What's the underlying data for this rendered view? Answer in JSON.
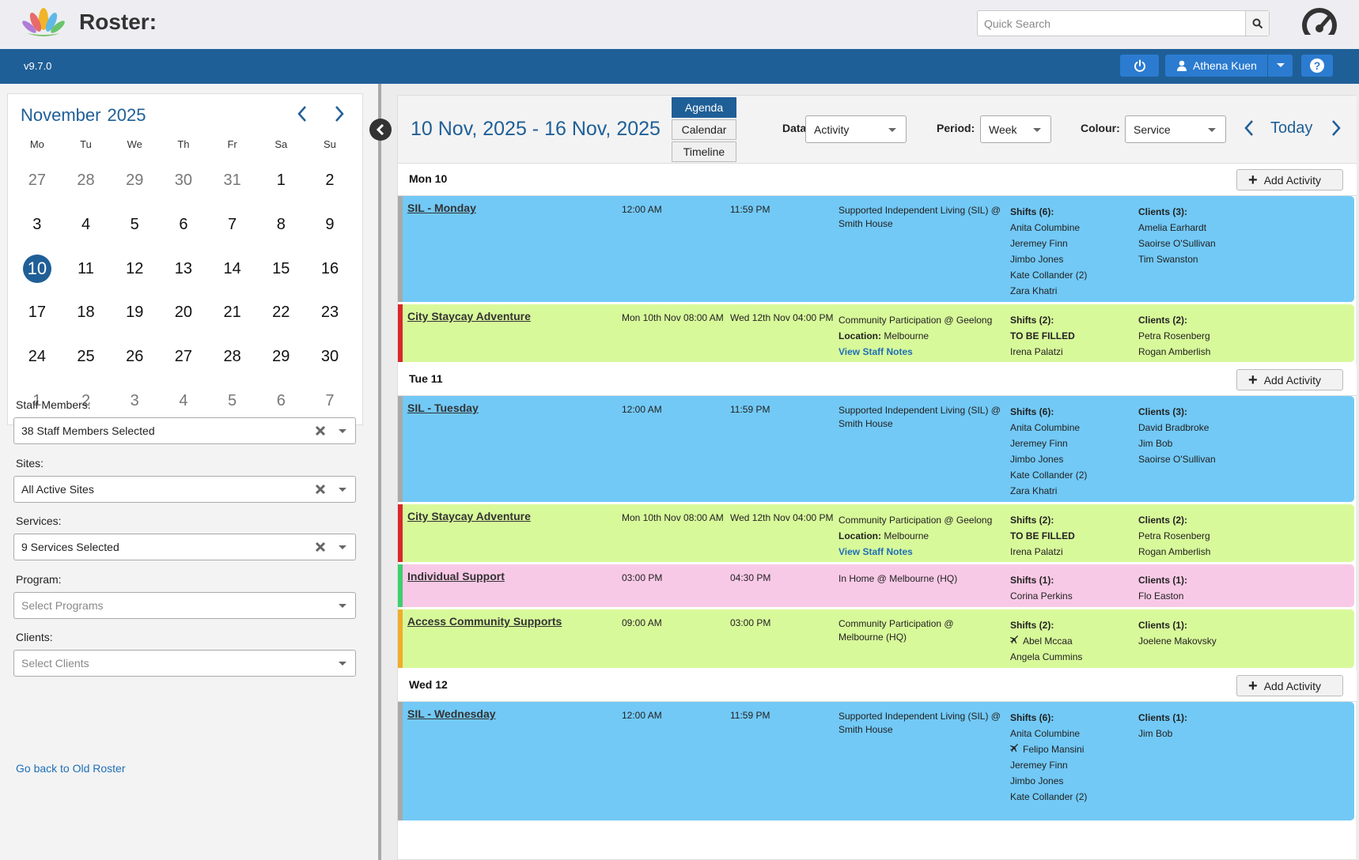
{
  "header": {
    "app_title": "Roster:",
    "search_placeholder": "Quick Search",
    "version": "v9.7.0",
    "user_name": "Athena Kuen"
  },
  "calendar": {
    "month": "November",
    "year": "2025",
    "dow": [
      "Mo",
      "Tu",
      "We",
      "Th",
      "Fr",
      "Sa",
      "Su"
    ],
    "days": [
      {
        "d": "27",
        "o": true
      },
      {
        "d": "28",
        "o": true
      },
      {
        "d": "29",
        "o": true
      },
      {
        "d": "30",
        "o": true
      },
      {
        "d": "31",
        "o": true
      },
      {
        "d": "1"
      },
      {
        "d": "2"
      },
      {
        "d": "3"
      },
      {
        "d": "4"
      },
      {
        "d": "5"
      },
      {
        "d": "6"
      },
      {
        "d": "7"
      },
      {
        "d": "8"
      },
      {
        "d": "9"
      },
      {
        "d": "10",
        "t": true
      },
      {
        "d": "11"
      },
      {
        "d": "12"
      },
      {
        "d": "13"
      },
      {
        "d": "14"
      },
      {
        "d": "15"
      },
      {
        "d": "16"
      },
      {
        "d": "17"
      },
      {
        "d": "18"
      },
      {
        "d": "19"
      },
      {
        "d": "20"
      },
      {
        "d": "21"
      },
      {
        "d": "22"
      },
      {
        "d": "23"
      },
      {
        "d": "24"
      },
      {
        "d": "25"
      },
      {
        "d": "26"
      },
      {
        "d": "27"
      },
      {
        "d": "28"
      },
      {
        "d": "29"
      },
      {
        "d": "30"
      },
      {
        "d": "1",
        "o": true
      },
      {
        "d": "2",
        "o": true
      },
      {
        "d": "3",
        "o": true
      },
      {
        "d": "4",
        "o": true
      },
      {
        "d": "5",
        "o": true
      },
      {
        "d": "6",
        "o": true
      },
      {
        "d": "7",
        "o": true
      }
    ]
  },
  "filters": {
    "staff_label": "Staff Members:",
    "staff_value": "38 Staff Members Selected",
    "sites_label": "Sites:",
    "sites_value": "All Active Sites",
    "services_label": "Services:",
    "services_value": "9 Services Selected",
    "program_label": "Program:",
    "program_placeholder": "Select Programs",
    "clients_label": "Clients:",
    "clients_placeholder": "Select Clients",
    "old_roster_link": "Go back to Old Roster"
  },
  "toolbar": {
    "range_title": "10 Nov, 2025 - 16 Nov, 2025",
    "views": [
      "Agenda",
      "Calendar",
      "Timeline"
    ],
    "data_label": "Data:",
    "data_value": "Activity",
    "period_label": "Period:",
    "period_value": "Week",
    "colour_label": "Colour:",
    "colour_value": "Service",
    "today_label": "Today",
    "add_activity_label": "Add Activity"
  },
  "colors": {
    "blue": "#72c9f6",
    "green": "#d8f99a",
    "pink": "#f8c9e6",
    "border_grey": "#a9a9a9",
    "border_red": "#d9262c",
    "border_green": "#3dcf6e",
    "border_orange": "#efad2c"
  },
  "agenda": [
    {
      "day": "Mon 10",
      "activities": [
        {
          "name": "SIL - Monday",
          "start": "12:00 AM",
          "end": "11:59 PM",
          "desc": "Supported Independent Living (SIL) @ Smith House",
          "location": "",
          "notes": "",
          "shifts_hd": "Shifts (6):",
          "shifts": [
            "Anita Columbine",
            "Jeremey Finn",
            "Jimbo Jones",
            "Kate Collander (2)",
            "Zara Khatri"
          ],
          "shift_icon": [],
          "clients_hd": "Clients (3):",
          "clients": [
            "Amelia Earhardt",
            "Saoirse O'Sullivan",
            "Tim Swanston"
          ],
          "bg": "#72c9f6",
          "border": "#a9a9a9",
          "h": 134
        },
        {
          "name": "City Staycay Adventure",
          "start": "Mon 10th Nov 08:00 AM",
          "end": "Wed 12th Nov 04:00 PM",
          "desc": "Community Participation @ Geelong",
          "location_label": "Location:",
          "location": "Melbourne",
          "notes": "View Staff Notes",
          "shifts_hd": "Shifts (2):",
          "shifts": [
            "TO BE FILLED",
            "Irena Palatzi"
          ],
          "shift_icon": [],
          "clients_hd": "Clients (2):",
          "clients": [
            "Petra Rosenberg",
            "Rogan Amberlish"
          ],
          "bg": "#d8f99a",
          "border": "#d9262c",
          "h": 73
        }
      ]
    },
    {
      "day": "Tue 11",
      "activities": [
        {
          "name": "SIL - Tuesday",
          "start": "12:00 AM",
          "end": "11:59 PM",
          "desc": "Supported Independent Living (SIL) @ Smith House",
          "location": "",
          "notes": "",
          "shifts_hd": "Shifts (6):",
          "shifts": [
            "Anita Columbine",
            "Jeremey Finn",
            "Jimbo Jones",
            "Kate Collander (2)",
            "Zara Khatri"
          ],
          "shift_icon": [],
          "clients_hd": "Clients (3):",
          "clients": [
            "David Bradbroke",
            "Jim Bob",
            "Saoirse O'Sullivan"
          ],
          "bg": "#72c9f6",
          "border": "#a9a9a9",
          "h": 134
        },
        {
          "name": "City Staycay Adventure",
          "start": "Mon 10th Nov 08:00 AM",
          "end": "Wed 12th Nov 04:00 PM",
          "desc": "Community Participation @ Geelong",
          "location_label": "Location:",
          "location": "Melbourne",
          "notes": "View Staff Notes",
          "shifts_hd": "Shifts (2):",
          "shifts": [
            "TO BE FILLED",
            "Irena Palatzi"
          ],
          "shift_icon": [],
          "clients_hd": "Clients (2):",
          "clients": [
            "Petra Rosenberg",
            "Rogan Amberlish"
          ],
          "bg": "#d8f99a",
          "border": "#d9262c",
          "h": 73
        },
        {
          "name": "Individual Support",
          "start": "03:00 PM",
          "end": "04:30 PM",
          "desc": "In Home @ Melbourne (HQ)",
          "location": "",
          "notes": "",
          "shifts_hd": "Shifts (1):",
          "shifts": [
            "Corina Perkins"
          ],
          "shift_icon": [],
          "clients_hd": "Clients (1):",
          "clients": [
            "Flo Easton"
          ],
          "bg": "#f8c9e6",
          "border": "#3dcf6e",
          "h": 54
        },
        {
          "name": "Access Community Supports",
          "start": "09:00 AM",
          "end": "03:00 PM",
          "desc": "Community Participation @ Melbourne (HQ)",
          "location": "",
          "notes": "",
          "shifts_hd": "Shifts (2):",
          "shifts": [
            "Abel Mccaa",
            "Angela Cummins"
          ],
          "shift_icon": [
            0
          ],
          "clients_hd": "Clients (1):",
          "clients": [
            "Joelene Makovsky"
          ],
          "bg": "#d8f99a",
          "border": "#efad2c",
          "h": 74
        }
      ]
    },
    {
      "day": "Wed 12",
      "activities": [
        {
          "name": "SIL - Wednesday",
          "start": "12:00 AM",
          "end": "11:59 PM",
          "desc": "Supported Independent Living (SIL) @ Smith House",
          "location": "",
          "notes": "",
          "shifts_hd": "Shifts (6):",
          "shifts": [
            "Anita Columbine",
            "Felipo Mansini",
            "Jeremey Finn",
            "Jimbo Jones",
            "Kate Collander (2)"
          ],
          "shift_icon": [
            1
          ],
          "clients_hd": "Clients (1):",
          "clients": [
            "Jim Bob"
          ],
          "bg": "#72c9f6",
          "border": "#a9a9a9",
          "h": 150
        }
      ]
    }
  ]
}
